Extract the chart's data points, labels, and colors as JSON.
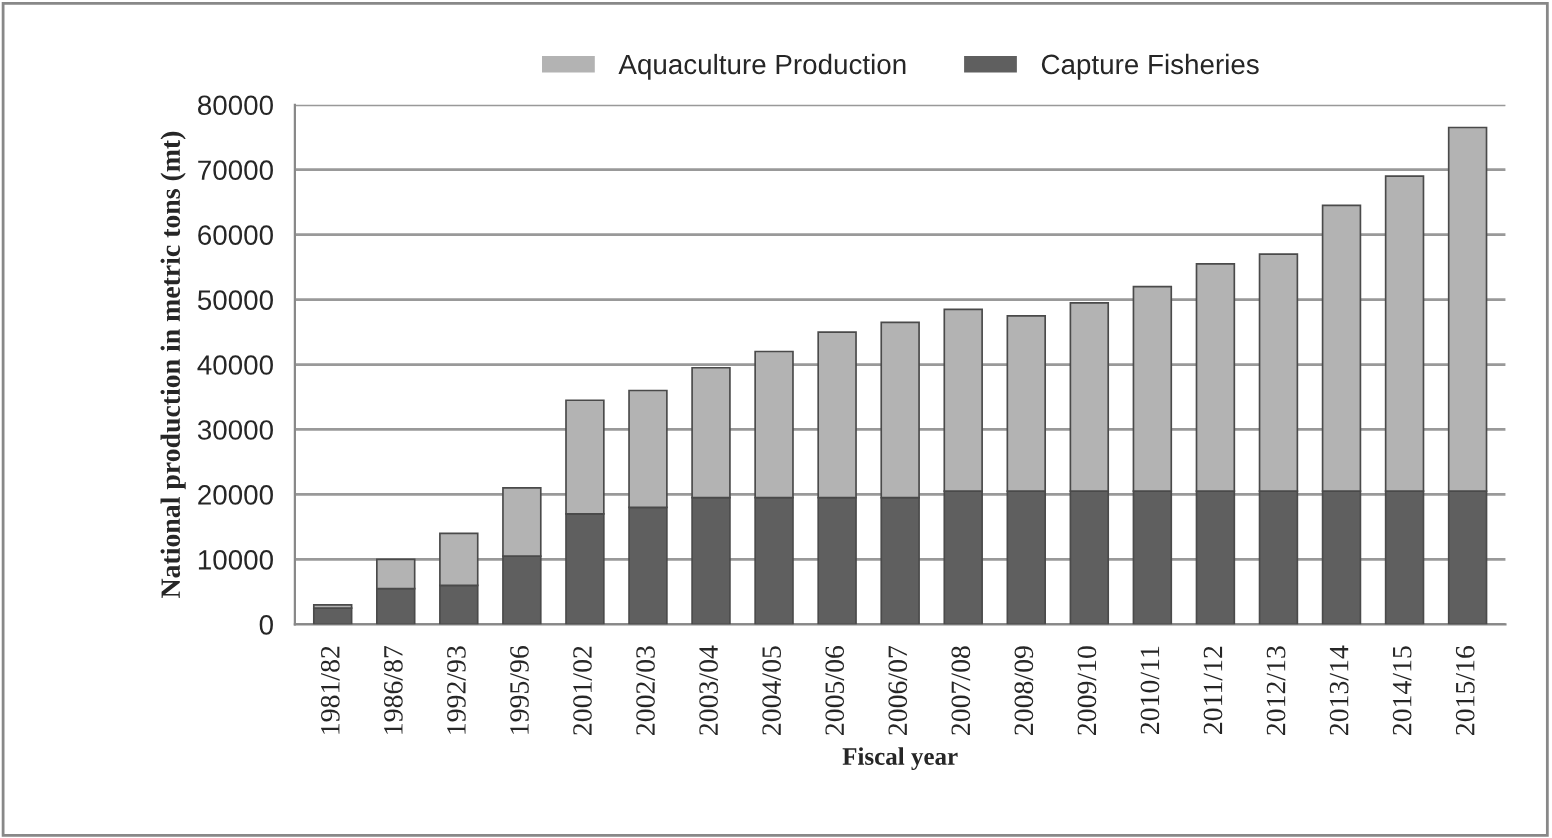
{
  "chart_data": {
    "type": "bar",
    "stacked": true,
    "xlabel": "Fiscal year",
    "ylabel": "National production in metric tons (mt)",
    "categories": [
      "1981/82",
      "1986/87",
      "1992/93",
      "1995/96",
      "2001/02",
      "2002/03",
      "2003/04",
      "2004/05",
      "2005/06",
      "2006/07",
      "2007/08",
      "2008/09",
      "2009/10",
      "2010/11",
      "2011/12",
      "2012/13",
      "2013/14",
      "2014/15",
      "2015/16"
    ],
    "series": [
      {
        "name": "Capture Fisheries",
        "color": "#5f5f5f",
        "values": [
          2500,
          5500,
          6000,
          10500,
          17000,
          18000,
          19500,
          19500,
          19500,
          19500,
          20500,
          20500,
          20500,
          20500,
          20500,
          20500,
          20500,
          20500,
          20500
        ]
      },
      {
        "name": "Aquaculture Production",
        "color": "#b3b3b3",
        "values": [
          500,
          4500,
          8000,
          10500,
          17500,
          18000,
          20000,
          22500,
          25500,
          27000,
          28000,
          27000,
          29000,
          31500,
          35000,
          36500,
          44000,
          48500,
          56000
        ]
      }
    ],
    "ylim": [
      0,
      80000
    ],
    "yticks": [
      0,
      10000,
      20000,
      30000,
      40000,
      50000,
      60000,
      70000,
      80000
    ],
    "grid": "y",
    "legend": "top"
  }
}
